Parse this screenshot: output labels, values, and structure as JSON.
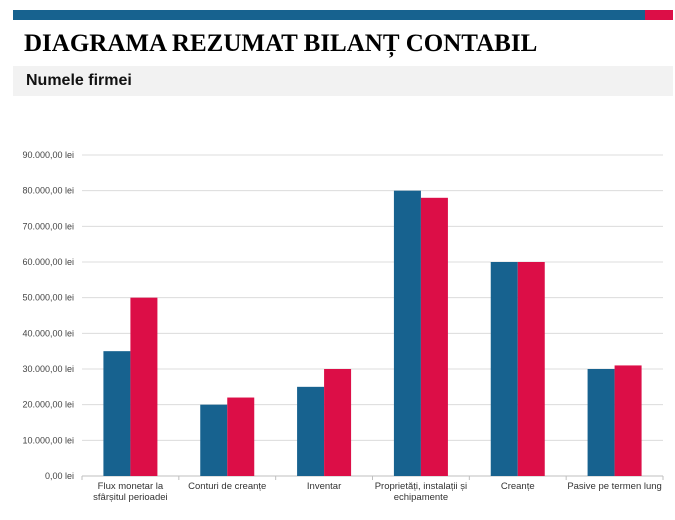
{
  "header": {
    "title": "DIAGRAMA REZUMAT BILANȚ CONTABIL",
    "company": "Numele firmei"
  },
  "colors": {
    "accent_blue": "#17628f",
    "accent_red": "#dc0e47"
  },
  "chart_data": {
    "type": "bar",
    "title": "",
    "xlabel": "",
    "ylabel": "",
    "ylim": [
      0,
      90000
    ],
    "yticks": [
      0,
      10000,
      20000,
      30000,
      40000,
      50000,
      60000,
      70000,
      80000,
      90000
    ],
    "ytick_labels": [
      "0,00 lei",
      "10.000,00 lei",
      "20.000,00 lei",
      "30.000,00 lei",
      "40.000,00 lei",
      "50.000,00 lei",
      "60.000,00 lei",
      "70.000,00 lei",
      "80.000,00 lei",
      "90.000,00 lei"
    ],
    "grid": true,
    "legend": "none",
    "categories": [
      [
        "Flux monetar la",
        "sfârșitul perioadei"
      ],
      [
        "Conturi de creanțe"
      ],
      [
        "Inventar"
      ],
      [
        "Proprietăți, instalații și",
        "echipamente"
      ],
      [
        "Creanțe"
      ],
      [
        "Pasive pe termen lung"
      ]
    ],
    "series": [
      {
        "color": "#17628f",
        "values": [
          35000,
          20000,
          25000,
          80000,
          60000,
          30000
        ]
      },
      {
        "color": "#dc0e47",
        "values": [
          50000,
          22000,
          30000,
          78000,
          60000,
          31000
        ]
      }
    ]
  }
}
